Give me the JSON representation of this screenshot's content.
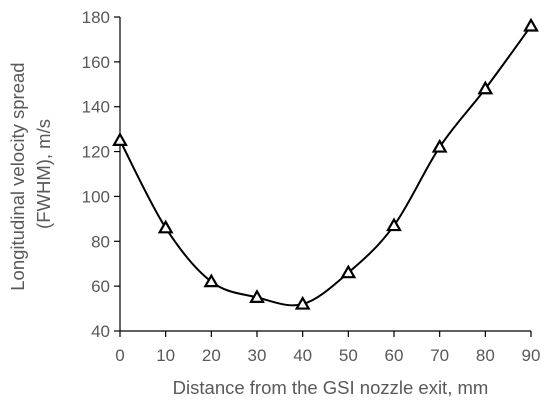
{
  "chart_data": {
    "type": "line",
    "title": "",
    "xlabel": "Distance from the GSI nozzle exit, mm",
    "ylabel_lines": [
      "Longitudinal velocity spread",
      "(FWHM), m/s"
    ],
    "xlim": [
      0,
      90
    ],
    "ylim": [
      40,
      180
    ],
    "xticks": [
      0,
      10,
      20,
      30,
      40,
      50,
      60,
      70,
      80,
      90
    ],
    "yticks": [
      40,
      60,
      80,
      100,
      120,
      140,
      160,
      180
    ],
    "grid": false,
    "legend": "none",
    "marker": "triangle-open",
    "line_style": "smooth",
    "line_color": "#000000",
    "series": [
      {
        "x": [
          0,
          10,
          20,
          30,
          40,
          50,
          60,
          70,
          80,
          90
        ],
        "y": [
          125,
          86,
          62,
          55,
          52,
          66,
          87,
          122,
          148,
          176
        ]
      }
    ]
  }
}
